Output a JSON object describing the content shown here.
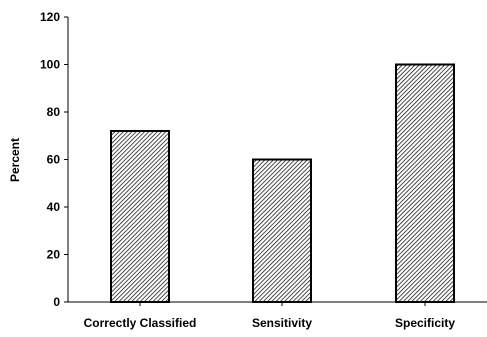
{
  "chart_data": {
    "type": "bar",
    "title": "",
    "xlabel": "",
    "ylabel": "Percent",
    "categories": [
      "Correctly Classified",
      "Sensitivity",
      "Specificity"
    ],
    "values": [
      72,
      60,
      100
    ],
    "ylim": [
      0,
      120
    ],
    "yticks": [
      "0",
      "20",
      "40",
      "60",
      "80",
      "100",
      "120"
    ],
    "grid": false,
    "legend": "none",
    "colors": {
      "bar_fill_pattern": "diagonal-hatch",
      "bar_fill_background": "#ffffff",
      "bar_fill_lines": "#000000",
      "bar_stroke": "#000000",
      "axis": "#000000"
    }
  }
}
